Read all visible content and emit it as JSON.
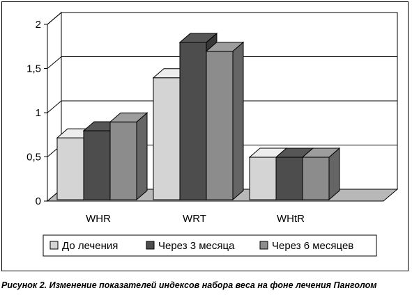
{
  "chart_data": {
    "type": "bar",
    "categories": [
      "WHR",
      "WRT",
      "WHtR"
    ],
    "series": [
      {
        "name": "До лечения",
        "values": [
          0.7,
          1.38,
          0.48
        ],
        "color": "#d4d4d4"
      },
      {
        "name": "Через 3 месяца",
        "values": [
          0.78,
          1.78,
          0.48
        ],
        "color": "#4d4d4d"
      },
      {
        "name": "Через 6 месяцев",
        "values": [
          0.88,
          1.68,
          0.48
        ],
        "color": "#8c8c8c"
      }
    ],
    "ylim": [
      0,
      2
    ],
    "yticks": [
      "0",
      "0,5",
      "1",
      "1,5",
      "2"
    ],
    "grid": true,
    "three_d": true,
    "legend_position": "bottom"
  },
  "caption": "Рисунок 2. Изменение показателей индексов набора веса на фоне лечения Панголом"
}
